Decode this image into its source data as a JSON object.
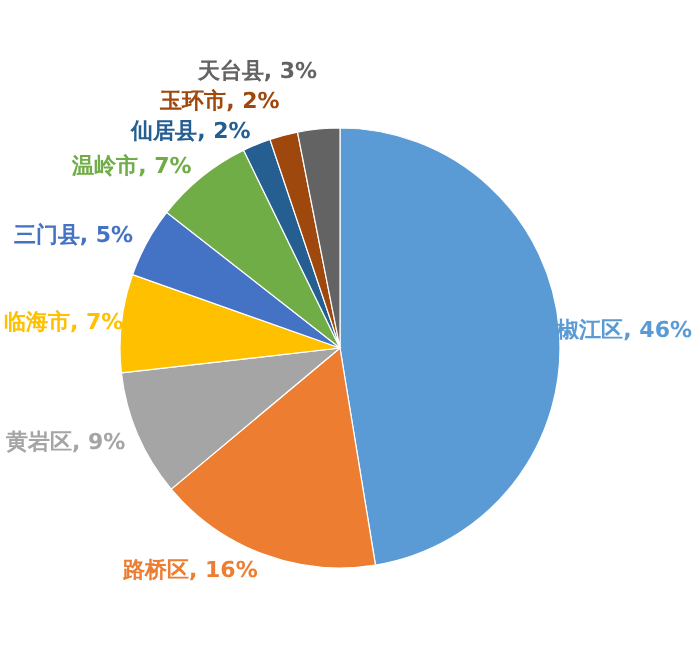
{
  "chart_data": {
    "type": "pie",
    "categories": [
      "椒江区",
      "路桥区",
      "黄岩区",
      "临海市",
      "三门县",
      "温岭市",
      "仙居县",
      "玉环市",
      "天台县"
    ],
    "values": [
      46,
      16,
      9,
      7,
      5,
      7,
      2,
      2,
      3
    ],
    "colors": [
      "#5b9bd5",
      "#ed7d31",
      "#a5a5a5",
      "#ffc000",
      "#4472c4",
      "#70ad47",
      "#255e91",
      "#9e480e",
      "#636363"
    ],
    "value_labels": [
      "46%",
      "16%",
      "9%",
      "7%",
      "5%",
      "7%",
      "2%",
      "2%",
      "3%"
    ],
    "legend": false
  }
}
